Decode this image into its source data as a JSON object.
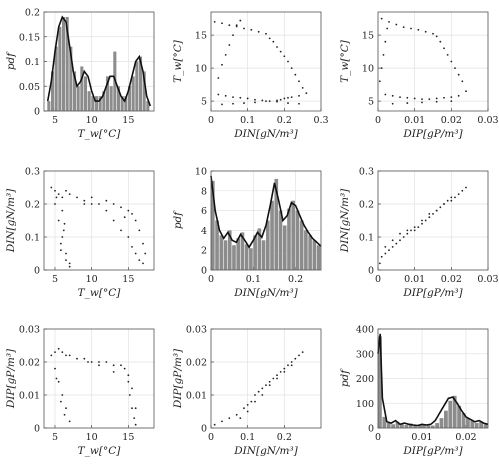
{
  "chart_data": [
    {
      "type": "bar",
      "xlabel": "T_w[°C]",
      "ylabel": "pdf",
      "xlim": [
        3.5,
        18.5
      ],
      "ylim": [
        0,
        0.2
      ],
      "xticks": [
        "5",
        "10",
        "15"
      ],
      "yticks": [
        "0",
        "0.05",
        "0.1",
        "0.15",
        "0.2"
      ],
      "x": [
        4.2,
        4.7,
        5.2,
        5.7,
        6.2,
        6.7,
        7.2,
        7.7,
        8.2,
        8.7,
        9.2,
        9.7,
        10.2,
        10.7,
        11.2,
        11.7,
        12.2,
        12.7,
        13.2,
        13.7,
        14.2,
        14.7,
        15.2,
        15.7,
        16.2,
        16.7,
        17.2,
        17.7
      ],
      "values": [
        0.02,
        0.08,
        0.13,
        0.17,
        0.19,
        0.19,
        0.13,
        0.08,
        0.05,
        0.09,
        0.07,
        0.04,
        0.03,
        0.03,
        0.03,
        0.04,
        0.07,
        0.05,
        0.12,
        0.05,
        0.03,
        0.03,
        0.05,
        0.07,
        0.1,
        0.11,
        0.08,
        0.02
      ],
      "line_x": [
        4,
        4.5,
        5,
        5.5,
        6,
        6.5,
        7,
        7.5,
        8,
        8.5,
        9,
        9.5,
        10,
        10.5,
        11,
        11.5,
        12,
        12.5,
        13,
        13.5,
        14,
        14.5,
        15,
        15.5,
        16,
        16.5,
        17,
        17.5,
        18
      ],
      "line_y": [
        0.02,
        0.06,
        0.12,
        0.17,
        0.19,
        0.18,
        0.13,
        0.08,
        0.05,
        0.06,
        0.08,
        0.07,
        0.04,
        0.02,
        0.02,
        0.03,
        0.05,
        0.07,
        0.07,
        0.05,
        0.03,
        0.02,
        0.04,
        0.07,
        0.1,
        0.11,
        0.08,
        0.03,
        0.01
      ]
    },
    {
      "type": "scatter",
      "xlabel": "DIN[gN/m³]",
      "ylabel": "T_w[°C]",
      "xlim": [
        0,
        0.3
      ],
      "ylim": [
        3.5,
        18.5
      ],
      "xticks": [
        "0",
        "0.1",
        "0.2",
        "0.3"
      ],
      "yticks": [
        "5",
        "10",
        "15"
      ],
      "x": [
        0.01,
        0.03,
        0.05,
        0.07,
        0.09,
        0.11,
        0.13,
        0.15,
        0.16,
        0.17,
        0.18,
        0.19,
        0.2,
        0.21,
        0.22,
        0.23,
        0.24,
        0.25,
        0.26,
        0.24,
        0.22,
        0.21,
        0.2,
        0.19,
        0.18,
        0.16,
        0.14,
        0.12,
        0.1,
        0.08,
        0.06,
        0.04,
        0.02,
        0.03,
        0.06,
        0.09,
        0.12,
        0.15,
        0.18,
        0.21,
        0.24,
        0.02,
        0.03,
        0.04,
        0.05,
        0.06,
        0.07,
        0.08
      ],
      "y": [
        17.0,
        16.8,
        16.5,
        16.3,
        16.0,
        15.8,
        15.5,
        15.2,
        14.5,
        14.0,
        13.2,
        12.5,
        11.8,
        11.0,
        10.0,
        9.0,
        8.0,
        7.0,
        6.2,
        5.8,
        5.6,
        5.5,
        5.4,
        5.2,
        5.1,
        5.0,
        5.1,
        5.2,
        5.4,
        5.5,
        5.6,
        5.8,
        6.0,
        4.5,
        4.6,
        4.7,
        4.8,
        5.0,
        4.9,
        4.7,
        4.6,
        8.5,
        10.5,
        12.0,
        13.5,
        15.0,
        16.5,
        17.2
      ]
    },
    {
      "type": "scatter",
      "xlabel": "DIP[gP/m³]",
      "ylabel": "T_w[°C]",
      "xlim": [
        0,
        0.03
      ],
      "ylim": [
        3.5,
        18.5
      ],
      "xticks": [
        "0",
        "0.01",
        "0.02",
        "0.03"
      ],
      "yticks": [
        "5",
        "10",
        "15"
      ],
      "x": [
        0.001,
        0.003,
        0.005,
        0.007,
        0.009,
        0.011,
        0.013,
        0.015,
        0.016,
        0.017,
        0.018,
        0.019,
        0.02,
        0.021,
        0.022,
        0.023,
        0.024,
        0.022,
        0.02,
        0.018,
        0.016,
        0.014,
        0.012,
        0.01,
        0.008,
        0.006,
        0.004,
        0.002,
        0.004,
        0.008,
        0.012,
        0.016,
        0.02,
        0.0005,
        0.001,
        0.0015,
        0.002,
        0.0025
      ],
      "y": [
        17.5,
        17.0,
        16.6,
        16.2,
        16.0,
        15.8,
        15.5,
        15.2,
        14.8,
        14.0,
        13.0,
        12.0,
        11.0,
        10.0,
        9.0,
        8.0,
        6.5,
        5.8,
        5.6,
        5.5,
        5.4,
        5.3,
        5.3,
        5.4,
        5.5,
        5.6,
        5.8,
        6.0,
        4.6,
        4.7,
        4.8,
        4.9,
        5.0,
        8.0,
        10.0,
        12.0,
        14.0,
        16.0
      ]
    },
    {
      "type": "scatter",
      "xlabel": "T_w[°C]",
      "ylabel": "DIN[gN/m³]",
      "xlim": [
        3.5,
        18.5
      ],
      "ylim": [
        0,
        0.3
      ],
      "xticks": [
        "5",
        "10",
        "15"
      ],
      "yticks": [
        "0",
        "0.1",
        "0.2",
        "0.3"
      ],
      "x": [
        4.5,
        5.0,
        5.5,
        6.0,
        6.5,
        7.0,
        8.0,
        9.0,
        10.0,
        11.0,
        12.0,
        13.0,
        14.0,
        15.0,
        15.5,
        16.0,
        16.5,
        17.0,
        17.3,
        5.0,
        5.5,
        6.0,
        6.5,
        7.0,
        6.0,
        6.2,
        5.8,
        6.5,
        7.0,
        5.2,
        5.8,
        6.3,
        14.5,
        15.0,
        15.5,
        16.0,
        16.5,
        17.0,
        14.0,
        13.0,
        12.0,
        10.0,
        9.0
      ],
      "y": [
        0.25,
        0.24,
        0.23,
        0.22,
        0.24,
        0.23,
        0.22,
        0.21,
        0.2,
        0.2,
        0.21,
        0.2,
        0.19,
        0.18,
        0.17,
        0.15,
        0.12,
        0.08,
        0.05,
        0.2,
        0.15,
        0.1,
        0.05,
        0.02,
        0.18,
        0.12,
        0.08,
        0.03,
        0.01,
        0.22,
        0.06,
        0.14,
        0.16,
        0.1,
        0.07,
        0.05,
        0.03,
        0.02,
        0.12,
        0.15,
        0.18,
        0.22,
        0.2
      ]
    },
    {
      "type": "bar",
      "xlabel": "DIN[gN/m³]",
      "ylabel": "pdf",
      "xlim": [
        0,
        0.26
      ],
      "ylim": [
        0,
        10
      ],
      "xticks": [
        "0",
        "0.1",
        "0.2"
      ],
      "yticks": [
        "0",
        "2",
        "4",
        "6",
        "8",
        "10"
      ],
      "x": [
        0.005,
        0.015,
        0.025,
        0.035,
        0.045,
        0.055,
        0.065,
        0.075,
        0.085,
        0.095,
        0.105,
        0.115,
        0.125,
        0.135,
        0.145,
        0.155,
        0.165,
        0.175,
        0.185,
        0.195,
        0.205,
        0.215,
        0.225,
        0.235,
        0.245,
        0.255
      ],
      "values": [
        9.0,
        5.0,
        3.5,
        3.0,
        4.0,
        2.5,
        3.2,
        3.8,
        2.6,
        2.2,
        3.5,
        4.2,
        3.0,
        5.0,
        7.0,
        9.2,
        6.0,
        4.5,
        6.2,
        7.0,
        6.0,
        5.0,
        4.0,
        3.5,
        3.0,
        2.5
      ],
      "line_x": [
        0,
        0.01,
        0.02,
        0.03,
        0.04,
        0.05,
        0.06,
        0.07,
        0.08,
        0.09,
        0.1,
        0.11,
        0.12,
        0.13,
        0.14,
        0.15,
        0.16,
        0.17,
        0.18,
        0.19,
        0.2,
        0.21,
        0.22,
        0.23,
        0.24,
        0.25,
        0.26
      ],
      "line_y": [
        9.5,
        6.0,
        4.0,
        3.2,
        3.8,
        3.0,
        2.8,
        3.6,
        3.0,
        2.3,
        3.0,
        3.8,
        3.3,
        4.5,
        6.5,
        8.8,
        7.0,
        5.0,
        5.5,
        6.8,
        6.5,
        5.5,
        4.5,
        3.8,
        3.2,
        2.8,
        2.4
      ]
    },
    {
      "type": "scatter",
      "xlabel": "DIP[gP/m³]",
      "ylabel": "DIN[gN/m³]",
      "xlim": [
        0,
        0.03
      ],
      "ylim": [
        0,
        0.3
      ],
      "xticks": [
        "0",
        "0.01",
        "0.02",
        "0.03"
      ],
      "yticks": [
        "0",
        "0.1",
        "0.2",
        "0.3"
      ],
      "x": [
        0.0005,
        0.001,
        0.002,
        0.003,
        0.004,
        0.005,
        0.006,
        0.007,
        0.008,
        0.009,
        0.01,
        0.011,
        0.012,
        0.013,
        0.014,
        0.015,
        0.016,
        0.017,
        0.018,
        0.019,
        0.02,
        0.021,
        0.022,
        0.023,
        0.024,
        0.002,
        0.004,
        0.006,
        0.008,
        0.01,
        0.012,
        0.014,
        0.016,
        0.018,
        0.02
      ],
      "y": [
        0.02,
        0.04,
        0.05,
        0.06,
        0.07,
        0.08,
        0.09,
        0.1,
        0.11,
        0.12,
        0.12,
        0.13,
        0.14,
        0.15,
        0.16,
        0.17,
        0.18,
        0.19,
        0.2,
        0.21,
        0.22,
        0.22,
        0.23,
        0.24,
        0.25,
        0.07,
        0.09,
        0.11,
        0.12,
        0.13,
        0.15,
        0.17,
        0.18,
        0.2,
        0.21
      ]
    },
    {
      "type": "scatter",
      "xlabel": "T_w[°C]",
      "ylabel": "DIP[gP/m³]",
      "xlim": [
        3.5,
        18.5
      ],
      "ylim": [
        0,
        0.03
      ],
      "xticks": [
        "5",
        "10",
        "15"
      ],
      "yticks": [
        "0",
        "0.01",
        "0.02",
        "0.03"
      ],
      "x": [
        4.5,
        5.0,
        5.5,
        6.0,
        6.5,
        7.0,
        8.0,
        9.0,
        10.0,
        11.0,
        12.0,
        13.0,
        14.0,
        14.5,
        15.0,
        15.5,
        16.0,
        5.0,
        5.5,
        6.0,
        6.5,
        7.0,
        5.2,
        5.8,
        6.3,
        15.0,
        15.2,
        15.5,
        15.8,
        16.0,
        13.0,
        11.0,
        9.5
      ],
      "y": [
        0.022,
        0.023,
        0.024,
        0.023,
        0.022,
        0.022,
        0.021,
        0.021,
        0.02,
        0.02,
        0.02,
        0.019,
        0.019,
        0.018,
        0.016,
        0.012,
        0.006,
        0.018,
        0.014,
        0.01,
        0.006,
        0.002,
        0.015,
        0.008,
        0.004,
        0.014,
        0.01,
        0.006,
        0.003,
        0.001,
        0.017,
        0.019,
        0.02
      ]
    },
    {
      "type": "scatter",
      "xlabel": "DIN[gN/m³]",
      "ylabel": "DIP[gP/m³]",
      "xlim": [
        0,
        0.3
      ],
      "ylim": [
        0,
        0.03
      ],
      "xticks": [
        "0",
        "0.1",
        "0.2"
      ],
      "yticks": [
        "0",
        "0.01",
        "0.02",
        "0.03"
      ],
      "x": [
        0.01,
        0.03,
        0.05,
        0.07,
        0.09,
        0.1,
        0.11,
        0.12,
        0.13,
        0.14,
        0.15,
        0.16,
        0.17,
        0.18,
        0.19,
        0.2,
        0.21,
        0.22,
        0.23,
        0.24,
        0.25,
        0.08,
        0.1,
        0.12,
        0.14,
        0.16,
        0.18,
        0.2,
        0.22
      ],
      "y": [
        0.001,
        0.002,
        0.003,
        0.004,
        0.006,
        0.007,
        0.008,
        0.01,
        0.011,
        0.012,
        0.013,
        0.014,
        0.015,
        0.016,
        0.017,
        0.018,
        0.019,
        0.02,
        0.021,
        0.022,
        0.023,
        0.003,
        0.005,
        0.008,
        0.01,
        0.013,
        0.015,
        0.017,
        0.019
      ]
    },
    {
      "type": "bar",
      "xlabel": "DIP[gP/m³]",
      "ylabel": "pdf",
      "xlim": [
        0,
        0.025
      ],
      "ylim": [
        0,
        400
      ],
      "xticks": [
        "0",
        "0.01",
        "0.02"
      ],
      "yticks": [
        "0",
        "100",
        "200",
        "300",
        "400"
      ],
      "x": [
        0.0005,
        0.0015,
        0.0025,
        0.0035,
        0.0045,
        0.0055,
        0.0065,
        0.0075,
        0.0085,
        0.0095,
        0.0105,
        0.0115,
        0.0125,
        0.0135,
        0.0145,
        0.0155,
        0.0165,
        0.0175,
        0.0185,
        0.0195,
        0.0205,
        0.0215,
        0.0225,
        0.0235,
        0.0245
      ],
      "values": [
        370,
        45,
        20,
        15,
        25,
        15,
        12,
        18,
        12,
        10,
        15,
        12,
        10,
        20,
        40,
        70,
        110,
        130,
        90,
        60,
        40,
        30,
        20,
        25,
        15
      ],
      "line_x": [
        0,
        0.0005,
        0.001,
        0.002,
        0.003,
        0.004,
        0.005,
        0.006,
        0.007,
        0.008,
        0.009,
        0.01,
        0.011,
        0.012,
        0.013,
        0.014,
        0.015,
        0.016,
        0.017,
        0.018,
        0.019,
        0.02,
        0.021,
        0.022,
        0.023,
        0.024,
        0.025
      ],
      "line_y": [
        300,
        380,
        120,
        25,
        20,
        30,
        15,
        20,
        15,
        12,
        10,
        15,
        12,
        15,
        30,
        60,
        90,
        120,
        125,
        100,
        70,
        45,
        35,
        25,
        30,
        20,
        15
      ]
    }
  ]
}
